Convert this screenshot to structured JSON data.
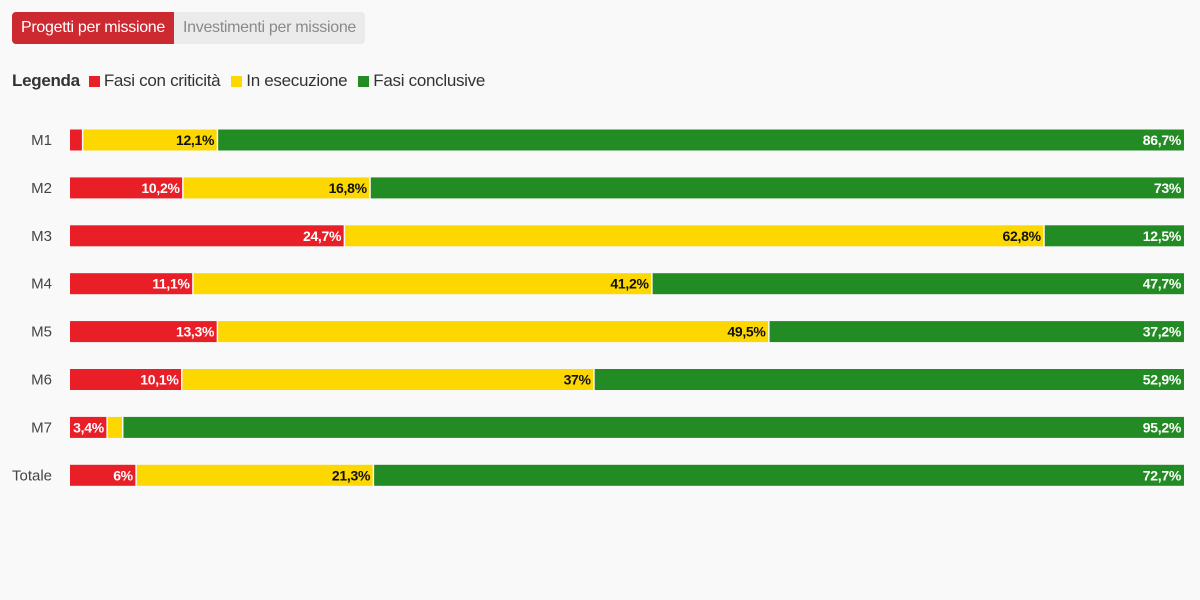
{
  "tabs": [
    {
      "label": "Progetti per missione",
      "active": true
    },
    {
      "label": "Investimenti per missione",
      "active": false
    }
  ],
  "legend": {
    "title": "Legenda",
    "items": [
      {
        "label": "Fasi con criticità",
        "color": "#e81f27"
      },
      {
        "label": "In esecuzione",
        "color": "#fdd700"
      },
      {
        "label": "Fasi conclusive",
        "color": "#238b23"
      }
    ]
  },
  "chart_data": {
    "type": "bar",
    "orientation": "horizontal",
    "stacked": true,
    "normalized": true,
    "title": "",
    "xlabel": "",
    "ylabel": "",
    "xlim": [
      0,
      100
    ],
    "grid": false,
    "legend_position": "top-left",
    "categories": [
      "M1",
      "M2",
      "M3",
      "M4",
      "M5",
      "M6",
      "M7",
      "Totale"
    ],
    "series": [
      {
        "name": "Fasi con criticità",
        "color": "#e81f27",
        "label_color": "#ffffff",
        "values": [
          1.2,
          10.2,
          24.7,
          11.1,
          13.3,
          10.1,
          3.4,
          6
        ],
        "labels": [
          "",
          "10,2%",
          "24,7%",
          "11,1%",
          "13,3%",
          "10,1%",
          "3,4%",
          "6%"
        ]
      },
      {
        "name": "In esecuzione",
        "color": "#fdd700",
        "label_color": "#111111",
        "values": [
          12.1,
          16.8,
          62.8,
          41.2,
          49.5,
          37,
          1.4,
          21.3
        ],
        "labels": [
          "12,1%",
          "16,8%",
          "62,8%",
          "41,2%",
          "49,5%",
          "37%",
          "",
          "21,3%"
        ]
      },
      {
        "name": "Fasi conclusive",
        "color": "#238b23",
        "label_color": "#ffffff",
        "values": [
          86.7,
          73,
          12.5,
          47.7,
          37.2,
          52.9,
          95.2,
          72.7
        ],
        "labels": [
          "86,7%",
          "73%",
          "12,5%",
          "47,7%",
          "37,2%",
          "52,9%",
          "95,2%",
          "72,7%"
        ]
      }
    ]
  }
}
